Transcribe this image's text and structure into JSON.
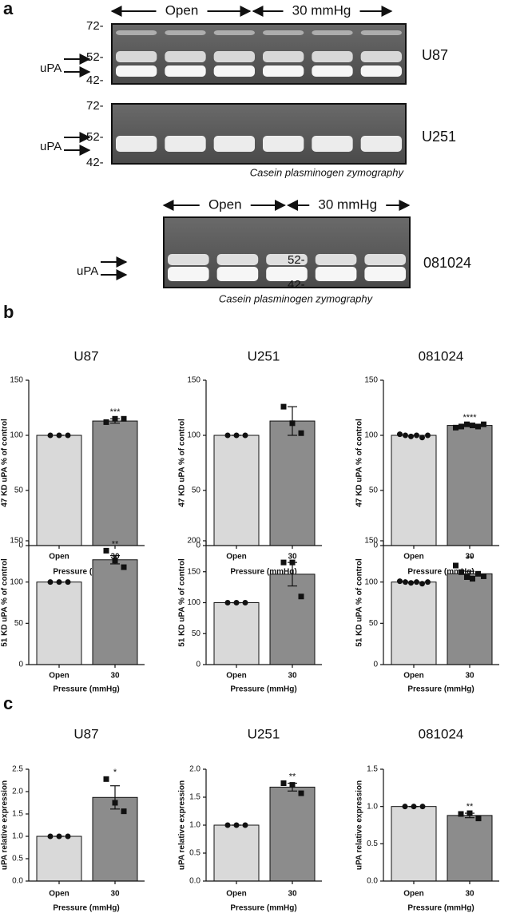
{
  "panel_a": {
    "label": "a",
    "groups": [
      {
        "conditions": [
          "Open",
          "30 mmHg"
        ],
        "caption": "Casein plasminogen zymography",
        "gels": [
          {
            "name": "U87",
            "markers": [
              "72-",
              "52-",
              "42-"
            ],
            "band": "uPA"
          },
          {
            "name": "U251",
            "markers": [
              "72-",
              "52-",
              "42-"
            ],
            "band": "uPA"
          }
        ]
      },
      {
        "conditions": [
          "Open",
          "30 mmHg"
        ],
        "caption": "Casein plasminogen zymography",
        "gels": [
          {
            "name": "081024",
            "markers": [
              "52-",
              "42-"
            ],
            "band": "uPA"
          }
        ]
      }
    ]
  },
  "panel_b_label": "b",
  "panel_c_label": "c",
  "chart_data": [
    {
      "type": "bar",
      "title": "U87",
      "ylabel": "47 KD uPA % of control",
      "xlabel": "Pressure (mmHg)",
      "categories": [
        "Open",
        "30"
      ],
      "values": [
        100,
        113
      ],
      "errors": [
        0,
        2
      ],
      "points": [
        [
          100,
          100,
          100
        ],
        [
          112,
          115,
          115
        ]
      ],
      "colors": [
        "#d9d9d9",
        "#8c8c8c"
      ],
      "markers": [
        "circle",
        "square"
      ],
      "significance": "***",
      "ylim": [
        0,
        150
      ],
      "yticks": [
        0,
        50,
        100,
        150
      ]
    },
    {
      "type": "bar",
      "title": "U251",
      "ylabel": "47 KD uPA % of control",
      "xlabel": "Pressure (mmHg)",
      "categories": [
        "Open",
        "30"
      ],
      "values": [
        100,
        113
      ],
      "errors": [
        0,
        13
      ],
      "points": [
        [
          100,
          100,
          100
        ],
        [
          126,
          111,
          102
        ]
      ],
      "colors": [
        "#d9d9d9",
        "#8c8c8c"
      ],
      "markers": [
        "circle",
        "square"
      ],
      "ylim": [
        0,
        150
      ],
      "yticks": [
        0,
        50,
        100,
        150
      ]
    },
    {
      "type": "bar",
      "title": "081024",
      "ylabel": "47 KD uPA % of control",
      "xlabel": "Pressure (mmHg)",
      "categories": [
        "Open",
        "30"
      ],
      "values": [
        100,
        109
      ],
      "errors": [
        0,
        1
      ],
      "points": [
        [
          101,
          100,
          99,
          100,
          98,
          100
        ],
        [
          107,
          108,
          110,
          109,
          108,
          110
        ]
      ],
      "colors": [
        "#d9d9d9",
        "#8c8c8c"
      ],
      "markers": [
        "circle",
        "square"
      ],
      "significance": "****",
      "ylim": [
        0,
        150
      ],
      "yticks": [
        0,
        50,
        100,
        150
      ]
    },
    {
      "type": "bar",
      "ylabel": "51 KD uPA % of control",
      "xlabel": "Pressure (mmHg)",
      "categories": [
        "Open",
        "30"
      ],
      "values": [
        100,
        127
      ],
      "errors": [
        0,
        5
      ],
      "points": [
        [
          100,
          100,
          100
        ],
        [
          138,
          126,
          118
        ]
      ],
      "colors": [
        "#d9d9d9",
        "#8c8c8c"
      ],
      "markers": [
        "circle",
        "square"
      ],
      "significance": "**",
      "ylim": [
        0,
        150
      ],
      "yticks": [
        0,
        50,
        100,
        150
      ]
    },
    {
      "type": "bar",
      "ylabel": "51 KD uPA % of control",
      "xlabel": "Pressure (mmHg)",
      "categories": [
        "Open",
        "30"
      ],
      "values": [
        100,
        146
      ],
      "errors": [
        0,
        19
      ],
      "points": [
        [
          100,
          100,
          100
        ],
        [
          165,
          165,
          110
        ]
      ],
      "colors": [
        "#d9d9d9",
        "#8c8c8c"
      ],
      "markers": [
        "circle",
        "square"
      ],
      "ylim": [
        0,
        200
      ],
      "yticks": [
        0,
        50,
        100,
        150,
        200
      ]
    },
    {
      "type": "bar",
      "ylabel": "51 KD uPA % of control",
      "xlabel": "Pressure (mmHg)",
      "categories": [
        "Open",
        "30"
      ],
      "values": [
        100,
        110
      ],
      "errors": [
        0,
        3
      ],
      "points": [
        [
          101,
          100,
          99,
          100,
          98,
          100
        ],
        [
          120,
          112,
          106,
          104,
          110,
          107
        ]
      ],
      "colors": [
        "#d9d9d9",
        "#8c8c8c"
      ],
      "markers": [
        "circle",
        "square"
      ],
      "significance": "**",
      "ylim": [
        0,
        150
      ],
      "yticks": [
        0,
        50,
        100,
        150
      ]
    },
    {
      "type": "bar",
      "title": "U87",
      "ylabel": "uPA relative expression",
      "xlabel": "Pressure (mmHg)",
      "categories": [
        "Open",
        "30"
      ],
      "values": [
        1.0,
        1.87
      ],
      "errors": [
        0,
        0.26
      ],
      "points": [
        [
          1.0,
          1.0,
          1.0
        ],
        [
          2.28,
          1.75,
          1.56
        ]
      ],
      "colors": [
        "#d9d9d9",
        "#8c8c8c"
      ],
      "markers": [
        "circle",
        "square"
      ],
      "significance": "*",
      "ylim": [
        0,
        2.5
      ],
      "yticks": [
        {
          "value": 0,
          "label": "0.0"
        },
        0.5,
        {
          "value": 1,
          "label": "1.0"
        },
        1.5,
        {
          "value": 2,
          "label": "2.0"
        },
        2.5
      ]
    },
    {
      "type": "bar",
      "title": "U251",
      "ylabel": "uPA relative expression",
      "xlabel": "Pressure (mmHg)",
      "categories": [
        "Open",
        "30"
      ],
      "values": [
        1.0,
        1.68
      ],
      "errors": [
        0,
        0.07
      ],
      "points": [
        [
          1.0,
          1.0,
          1.0
        ],
        [
          1.75,
          1.72,
          1.57
        ]
      ],
      "colors": [
        "#d9d9d9",
        "#8c8c8c"
      ],
      "markers": [
        "circle",
        "square"
      ],
      "significance": "**",
      "ylim": [
        0,
        2
      ],
      "yticks": [
        {
          "value": 0,
          "label": "0.0"
        },
        0.5,
        {
          "value": 1,
          "label": "1.0"
        },
        1.5,
        {
          "value": 2,
          "label": "2.0"
        }
      ]
    },
    {
      "type": "bar",
      "title": "081024",
      "ylabel": "uPA relative expression",
      "xlabel": "Pressure (mmHg)",
      "categories": [
        "Open",
        "30"
      ],
      "values": [
        1.0,
        0.88
      ],
      "errors": [
        0,
        0.03
      ],
      "points": [
        [
          1.0,
          1.0,
          1.0
        ],
        [
          0.9,
          0.91,
          0.84
        ]
      ],
      "colors": [
        "#d9d9d9",
        "#8c8c8c"
      ],
      "markers": [
        "circle",
        "square"
      ],
      "significance": "**",
      "ylim": [
        0,
        1.5
      ],
      "yticks": [
        {
          "value": 0,
          "label": "0.0"
        },
        0.5,
        {
          "value": 1,
          "label": "1.0"
        },
        1.5
      ]
    }
  ]
}
